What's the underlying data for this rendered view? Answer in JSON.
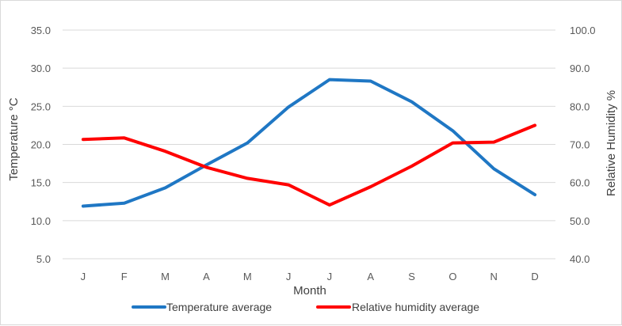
{
  "chart_data": {
    "type": "line",
    "categories": [
      "J",
      "F",
      "M",
      "A",
      "M",
      "J",
      "J",
      "A",
      "S",
      "O",
      "N",
      "D"
    ],
    "xlabel": "Month",
    "ylabel_left": "Temperature °C",
    "ylabel_right": "Relative Humidity %",
    "y_left": {
      "min": 5.0,
      "max": 35.0,
      "ticks": [
        "5.0",
        "10.0",
        "15.0",
        "20.0",
        "25.0",
        "30.0",
        "35.0"
      ]
    },
    "y_right": {
      "min": 40.0,
      "max": 100.0,
      "ticks": [
        "40.0",
        "50.0",
        "60.0",
        "70.0",
        "80.0",
        "90.0",
        "100.0"
      ]
    },
    "grid": true,
    "legend_position": "bottom",
    "series": [
      {
        "name": "Temperature average",
        "axis": "left",
        "color": "#1f77c4",
        "values": [
          11.9,
          12.3,
          14.3,
          17.3,
          20.2,
          24.9,
          28.5,
          28.3,
          25.6,
          21.8,
          16.8,
          13.4
        ]
      },
      {
        "name": "Relative humidity average",
        "axis": "right",
        "color": "#ff0000",
        "values": [
          71.3,
          71.7,
          68.2,
          64.0,
          61.1,
          59.4,
          54.1,
          58.9,
          64.3,
          70.4,
          70.6,
          75.0
        ]
      }
    ]
  }
}
